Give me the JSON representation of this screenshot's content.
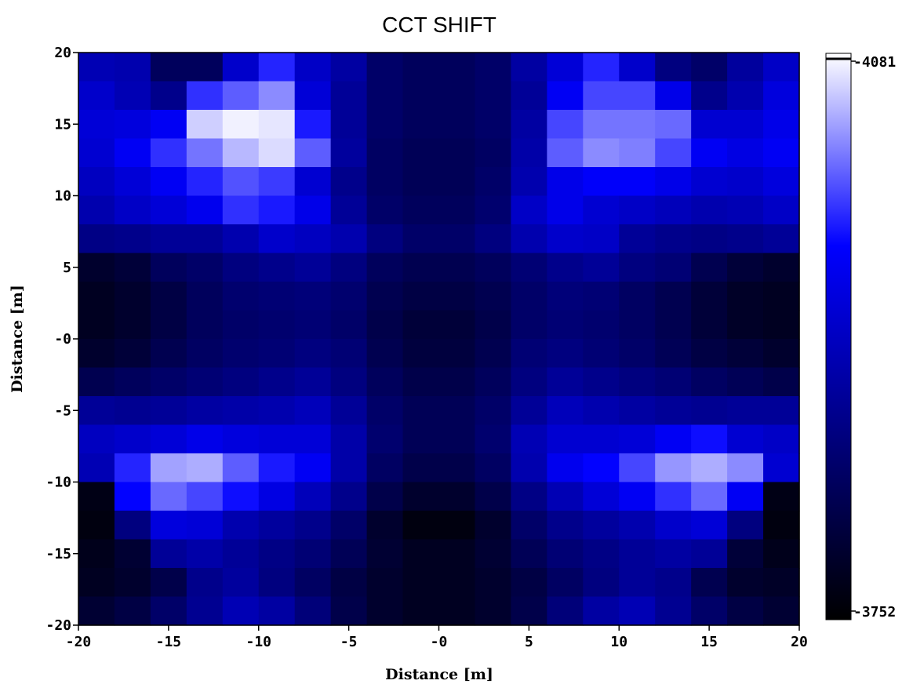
{
  "chart_data": {
    "type": "heatmap",
    "title": "CCT SHIFT",
    "xlabel": "Distance [m]",
    "ylabel": "Distance [m]",
    "xlim": [
      -20,
      20
    ],
    "ylim": [
      -20,
      20
    ],
    "x_ticks": [
      "-20",
      "-15",
      "-10",
      "-5",
      "-0",
      "5",
      "10",
      "15",
      "20"
    ],
    "y_ticks": [
      "20",
      "15",
      "10",
      "5",
      "-0",
      "-5",
      "-10",
      "-15",
      "-20"
    ],
    "colorbar": {
      "min": 3752,
      "max": 4081,
      "min_label": "-3752",
      "max_label": "-4081",
      "colors": [
        "#000000",
        "#000080",
        "#0000ff",
        "#ffffff"
      ]
    },
    "grid": {
      "x_centers": [
        -19,
        -17,
        -15,
        -13,
        -11,
        -9,
        -7,
        -5,
        -3,
        -1,
        1,
        3,
        5,
        7,
        9,
        11,
        13,
        15,
        17,
        19
      ],
      "y_centers": [
        19,
        17,
        15,
        13,
        11,
        9,
        7,
        5,
        3,
        1,
        -1,
        -3,
        -5,
        -7,
        -9,
        -11,
        -13,
        -15,
        -17,
        -19
      ],
      "values": [
        [
          3905,
          3900,
          3830,
          3830,
          3925,
          3985,
          3920,
          3890,
          3840,
          3830,
          3830,
          3840,
          3890,
          3935,
          3985,
          3925,
          3860,
          3840,
          3885,
          3920
        ],
        [
          3925,
          3905,
          3870,
          3990,
          4010,
          4030,
          3935,
          3880,
          3840,
          3830,
          3830,
          3840,
          3880,
          3960,
          4000,
          4000,
          3950,
          3870,
          3900,
          3940
        ],
        [
          3935,
          3940,
          3960,
          4060,
          4075,
          4070,
          3980,
          3880,
          3840,
          3830,
          3830,
          3840,
          3890,
          4000,
          4020,
          4020,
          4015,
          3930,
          3930,
          3950
        ],
        [
          3930,
          3960,
          3990,
          4020,
          4050,
          4065,
          4010,
          3885,
          3835,
          3825,
          3825,
          3835,
          3895,
          4010,
          4030,
          4025,
          4000,
          3960,
          3945,
          3960
        ],
        [
          3915,
          3935,
          3960,
          3985,
          4005,
          3995,
          3930,
          3870,
          3835,
          3825,
          3825,
          3840,
          3900,
          3950,
          3965,
          3965,
          3950,
          3930,
          3925,
          3940
        ],
        [
          3900,
          3920,
          3935,
          3955,
          3990,
          3980,
          3950,
          3880,
          3840,
          3830,
          3830,
          3845,
          3920,
          3950,
          3930,
          3920,
          3910,
          3900,
          3905,
          3920
        ],
        [
          3865,
          3870,
          3880,
          3880,
          3900,
          3925,
          3915,
          3900,
          3860,
          3840,
          3840,
          3860,
          3900,
          3925,
          3920,
          3880,
          3870,
          3865,
          3870,
          3880
        ],
        [
          3790,
          3800,
          3830,
          3840,
          3860,
          3870,
          3880,
          3860,
          3830,
          3820,
          3820,
          3830,
          3850,
          3870,
          3880,
          3860,
          3850,
          3820,
          3800,
          3790
        ],
        [
          3780,
          3790,
          3810,
          3830,
          3845,
          3850,
          3855,
          3845,
          3820,
          3810,
          3810,
          3820,
          3840,
          3855,
          3850,
          3835,
          3820,
          3800,
          3785,
          3780
        ],
        [
          3780,
          3790,
          3810,
          3830,
          3840,
          3845,
          3850,
          3840,
          3815,
          3800,
          3800,
          3815,
          3840,
          3850,
          3845,
          3835,
          3820,
          3800,
          3785,
          3780
        ],
        [
          3790,
          3800,
          3820,
          3835,
          3845,
          3850,
          3860,
          3850,
          3820,
          3805,
          3805,
          3820,
          3850,
          3860,
          3850,
          3840,
          3825,
          3810,
          3800,
          3790
        ],
        [
          3820,
          3830,
          3840,
          3850,
          3860,
          3870,
          3880,
          3860,
          3830,
          3815,
          3815,
          3830,
          3860,
          3880,
          3870,
          3860,
          3850,
          3835,
          3825,
          3815
        ],
        [
          3880,
          3875,
          3880,
          3890,
          3895,
          3900,
          3910,
          3880,
          3840,
          3825,
          3825,
          3840,
          3880,
          3910,
          3900,
          3890,
          3880,
          3875,
          3880,
          3880
        ],
        [
          3915,
          3925,
          3935,
          3950,
          3940,
          3935,
          3935,
          3895,
          3845,
          3825,
          3825,
          3845,
          3905,
          3930,
          3930,
          3935,
          3960,
          3975,
          3930,
          3920
        ],
        [
          3905,
          3985,
          4040,
          4045,
          4010,
          3980,
          3960,
          3895,
          3835,
          3815,
          3815,
          3835,
          3900,
          3955,
          3970,
          4000,
          4035,
          4045,
          4030,
          3930
        ],
        [
          3770,
          3970,
          4015,
          4000,
          3975,
          3945,
          3910,
          3870,
          3815,
          3790,
          3790,
          3815,
          3865,
          3905,
          3935,
          3960,
          3990,
          4015,
          3960,
          3770
        ],
        [
          3765,
          3860,
          3940,
          3935,
          3900,
          3885,
          3870,
          3840,
          3790,
          3765,
          3765,
          3790,
          3840,
          3870,
          3885,
          3900,
          3925,
          3935,
          3860,
          3765
        ],
        [
          3775,
          3795,
          3880,
          3895,
          3880,
          3865,
          3850,
          3825,
          3795,
          3780,
          3780,
          3795,
          3825,
          3850,
          3865,
          3880,
          3890,
          3880,
          3800,
          3775
        ],
        [
          3780,
          3790,
          3815,
          3870,
          3885,
          3860,
          3835,
          3810,
          3790,
          3780,
          3780,
          3790,
          3810,
          3835,
          3860,
          3880,
          3870,
          3820,
          3790,
          3785
        ],
        [
          3795,
          3810,
          3840,
          3875,
          3905,
          3890,
          3855,
          3815,
          3790,
          3780,
          3780,
          3790,
          3815,
          3855,
          3890,
          3905,
          3875,
          3840,
          3810,
          3795
        ]
      ]
    }
  }
}
